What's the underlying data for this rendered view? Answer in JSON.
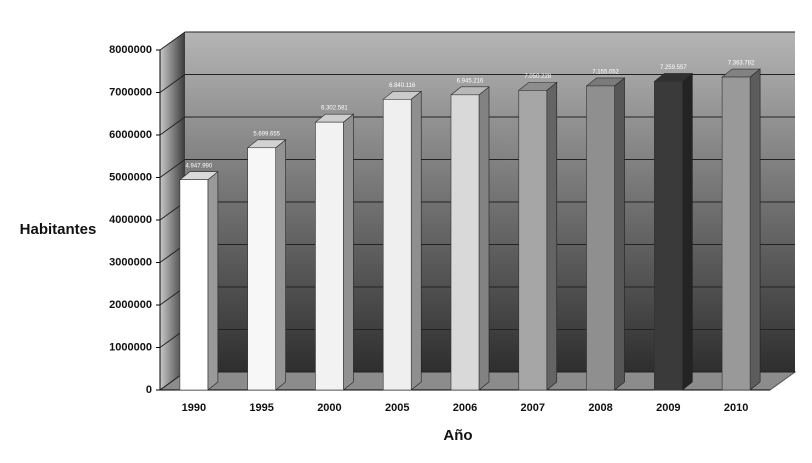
{
  "chart_data": {
    "type": "bar3d",
    "x_label": "Año",
    "y_label": "Habitantes",
    "categories": [
      "1990",
      "1995",
      "2000",
      "2005",
      "2006",
      "2007",
      "2008",
      "2009",
      "2010"
    ],
    "values": [
      4947990,
      5699655,
      6302581,
      6840116,
      6945216,
      7050228,
      7155052,
      7259557,
      7363782
    ],
    "value_labels": [
      "4.947.990",
      "5.699.655",
      "6.302.581",
      "6.840.116",
      "6.945.216",
      "7.050.228",
      "7.155.052",
      "7.259.557",
      "7.363.782"
    ],
    "colors": [
      "#ffffff",
      "#f7f7f7",
      "#f2f2f2",
      "#efefef",
      "#d9d9d9",
      "#a6a6a6",
      "#8f8f8f",
      "#3a3a3a",
      "#999999"
    ],
    "ylim": [
      0,
      8000000
    ],
    "yticks": [
      0,
      1000000,
      2000000,
      3000000,
      4000000,
      5000000,
      6000000,
      7000000,
      8000000
    ],
    "grid": true
  }
}
